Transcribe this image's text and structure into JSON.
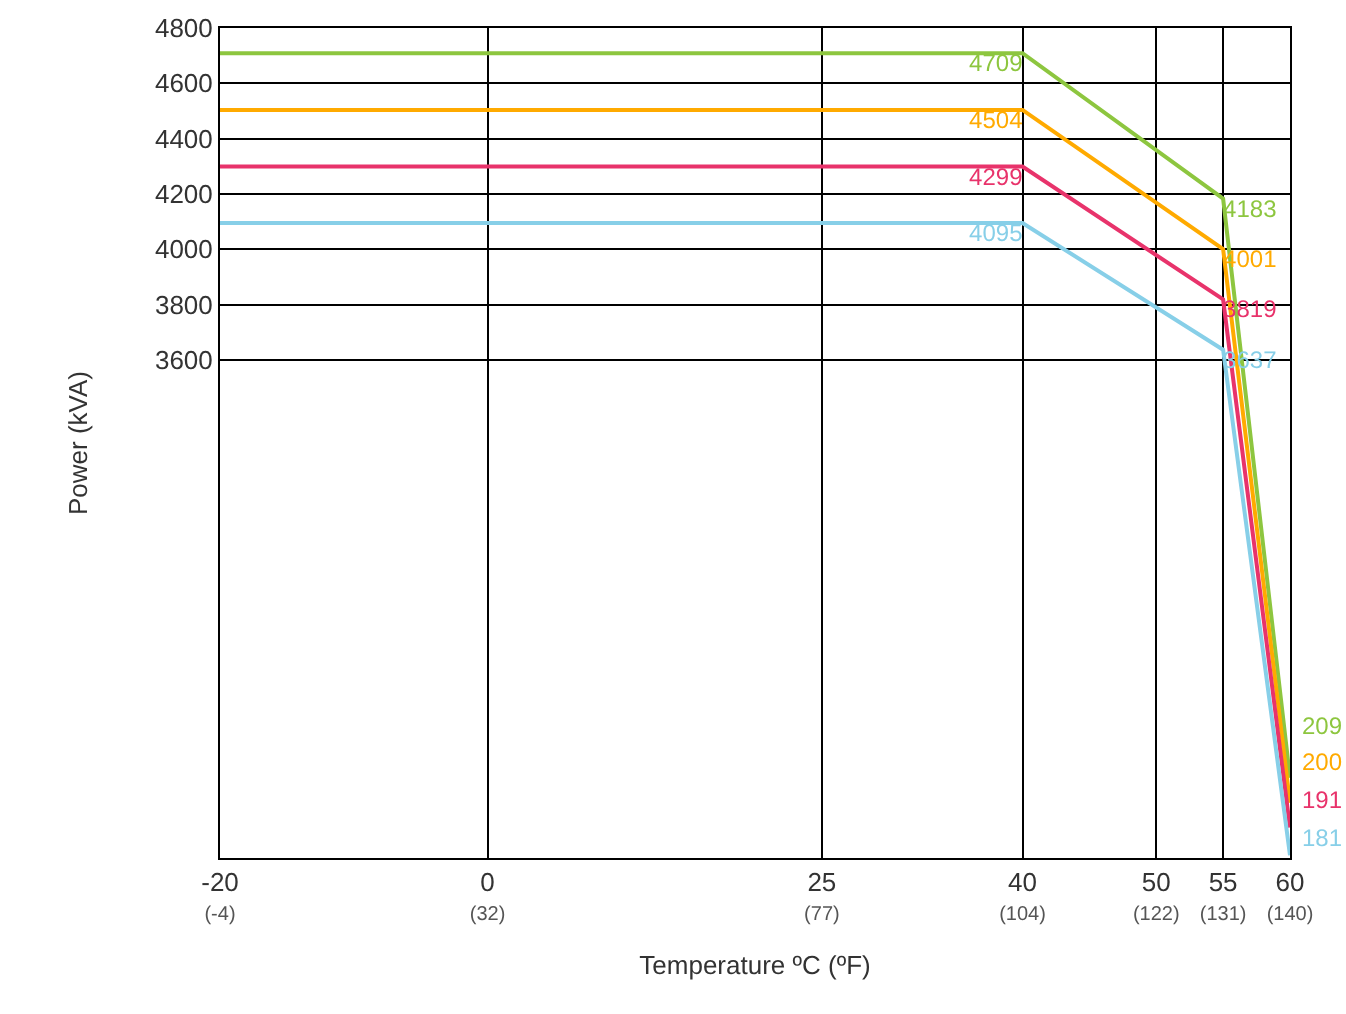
{
  "chart_data": {
    "type": "line",
    "xlabel": "Temperature ºC (ºF)",
    "ylabel": "Power (kVA)",
    "x": [
      -20,
      40,
      55,
      60
    ],
    "series": [
      {
        "color": "#8dc63f",
        "values": [
          4709,
          4709,
          4183,
          2090
        ],
        "value_labels": [
          null,
          "4709",
          "4183",
          null
        ]
      },
      {
        "color": "#ffaa00",
        "values": [
          4504,
          4504,
          4001,
          2000
        ],
        "value_labels": [
          null,
          "4504",
          "4001",
          null
        ]
      },
      {
        "color": "#e8336b",
        "values": [
          4299,
          4299,
          3819,
          1910
        ],
        "value_labels": [
          null,
          "4299",
          "3819",
          null
        ]
      },
      {
        "color": "#87cfe8",
        "values": [
          4095,
          4095,
          3637,
          1810
        ],
        "value_labels": [
          null,
          "4095",
          "3637",
          null
        ]
      }
    ],
    "annotations": [
      "209",
      "200",
      "191",
      "181"
    ],
    "xlim": [
      -20,
      60
    ],
    "xticks": [
      -20,
      0,
      25,
      40,
      50,
      55,
      60
    ],
    "x2lim": [
      -4,
      140
    ],
    "x2ticks": [
      {
        "value": -4,
        "label": "(-4)"
      },
      {
        "value": 32,
        "label": "(32)"
      },
      {
        "value": 77,
        "label": "(77)"
      },
      {
        "value": 104,
        "label": "(104)"
      },
      {
        "value": 122,
        "label": "(122)"
      },
      {
        "value": 131,
        "label": "(131)"
      },
      {
        "value": 140,
        "label": "(140)"
      }
    ],
    "ylim": [
      1800,
      4800
    ],
    "yticks": [
      3600,
      3800,
      4000,
      4200,
      4400,
      4600,
      4800
    ],
    "grid": true,
    "marker": "none",
    "line_style": "solid"
  }
}
